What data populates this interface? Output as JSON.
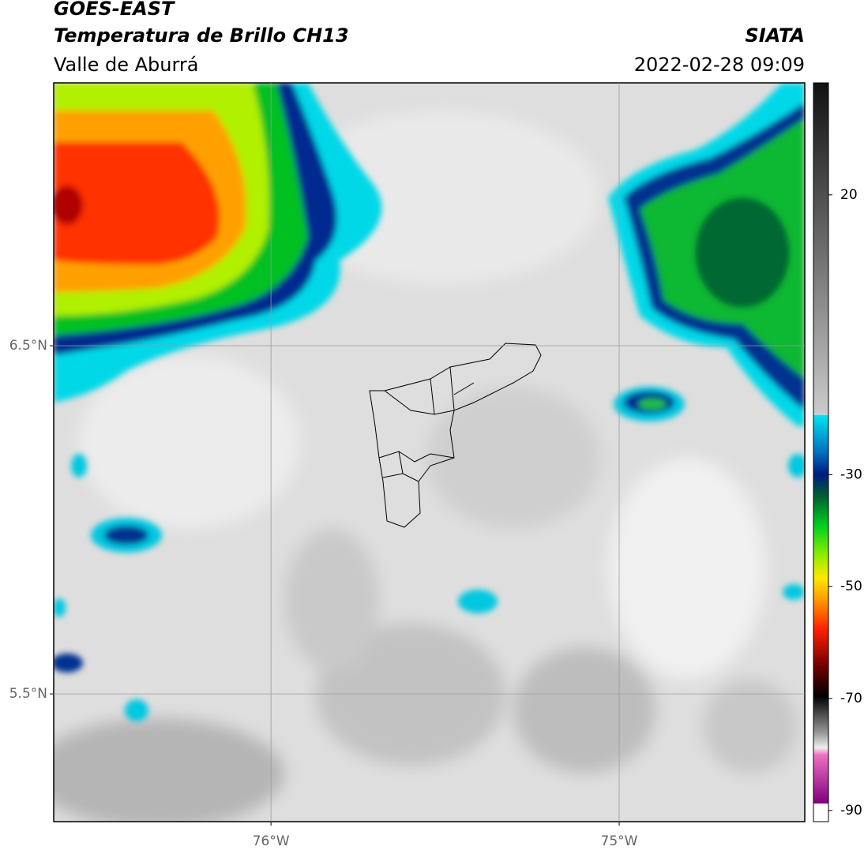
{
  "header": {
    "satellite": "GOES-EAST",
    "product": "Temperatura de Brillo CH13",
    "region": "Valle de Aburrá",
    "source": "SIATA",
    "datetime": "2022-02-28 09:09"
  },
  "map": {
    "xlim": [
      -76.624,
      -74.467
    ],
    "ylim": [
      5.133,
      7.255
    ],
    "xticks": [
      {
        "value": -76,
        "label": "76°W"
      },
      {
        "value": -75,
        "label": "75°W"
      }
    ],
    "yticks": [
      {
        "value": 6.5,
        "label": "6.5°N"
      },
      {
        "value": 5.5,
        "label": "5.5°N"
      }
    ],
    "grid": true
  },
  "colorbar": {
    "lim": [
      -92,
      40
    ],
    "ticks": [
      20,
      -30,
      -50,
      -70,
      -90
    ]
  }
}
